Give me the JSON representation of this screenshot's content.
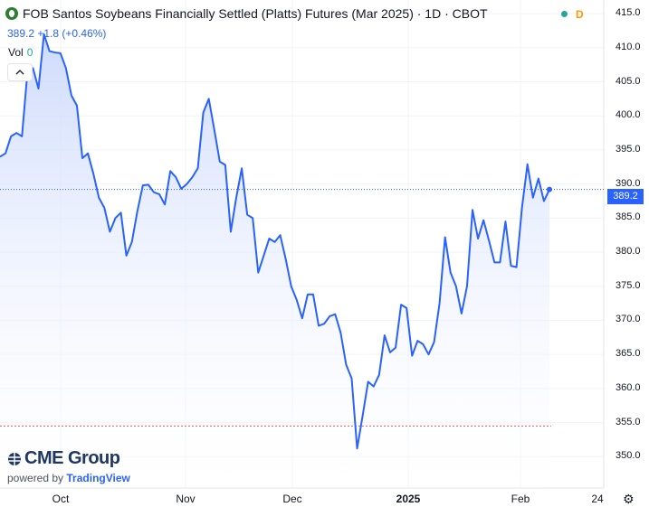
{
  "header": {
    "title": "FOB Santos Soybeans Financially Settled (Platts) Futures (Mar 2025) · 1D · CBOT",
    "status_letter": "D",
    "price_text": "389.2 +1.8 (+0.46%)",
    "vol_label": "Vol",
    "vol_value": "0"
  },
  "collapse_icon": "chevron-up-icon",
  "colors": {
    "line": "#2962ff",
    "area_top": "#c9d7fb",
    "area_bottom": "#ffffff",
    "last_price": "#2962ff",
    "low_dotted": "#ef5350",
    "status_dot": "#26a69a",
    "status_letter": "#ff9800"
  },
  "chart_data": {
    "type": "area",
    "x_tick_labels": [
      "Oct",
      "Nov",
      "Dec",
      "2025",
      "Feb",
      "24"
    ],
    "y_tick_labels": [
      "415.0",
      "410.0",
      "405.0",
      "400.0",
      "395.0",
      "390.0",
      "385.0",
      "380.0",
      "375.0",
      "370.0",
      "365.0",
      "360.0",
      "355.0",
      "350.0"
    ],
    "ylim": [
      345.4,
      417.0
    ],
    "last_value_label": "389.2",
    "series": [
      {
        "values": [
          394.0,
          394.5,
          397.0,
          397.5,
          397.0,
          406.5,
          407.0,
          404.0,
          412.0,
          409.5,
          409.3,
          409.2,
          407.0,
          403.0,
          401.5,
          393.8,
          394.5,
          391.5,
          388.0,
          386.5,
          383.0,
          385.0,
          385.8,
          379.5,
          381.5,
          386.0,
          389.8,
          389.9,
          388.8,
          388.5,
          387.0,
          391.9,
          391.0,
          389.3,
          390.0,
          391.0,
          392.3,
          400.5,
          402.5,
          398.0,
          393.3,
          392.8,
          383.0,
          388.0,
          392.3,
          385.5,
          385.0,
          377.0,
          379.5,
          382.0,
          381.5,
          382.5,
          379.0,
          375.0,
          373.0,
          370.3,
          373.8,
          373.8,
          369.2,
          369.5,
          370.6,
          370.9,
          368.2,
          363.5,
          361.5,
          351.2,
          356.0,
          361.0,
          360.3,
          362.0,
          367.8,
          365.3,
          366.0,
          372.3,
          371.8,
          364.8,
          367.0,
          366.5,
          365.0,
          366.8,
          372.5,
          382.2,
          377.0,
          375.0,
          371.0,
          375.0,
          386.2,
          382.0,
          384.7,
          381.7,
          378.5,
          378.5,
          384.5,
          378.0,
          377.8,
          386.5,
          392.9,
          388.0,
          390.8,
          387.5,
          389.2
        ]
      }
    ],
    "reference_low": 354.5,
    "grid": true,
    "legend": "none"
  },
  "branding": {
    "logo_text": "CME Group",
    "powered_prefix": "powered by",
    "powered_brand": "TradingView"
  },
  "settings_icon": "gear-icon"
}
